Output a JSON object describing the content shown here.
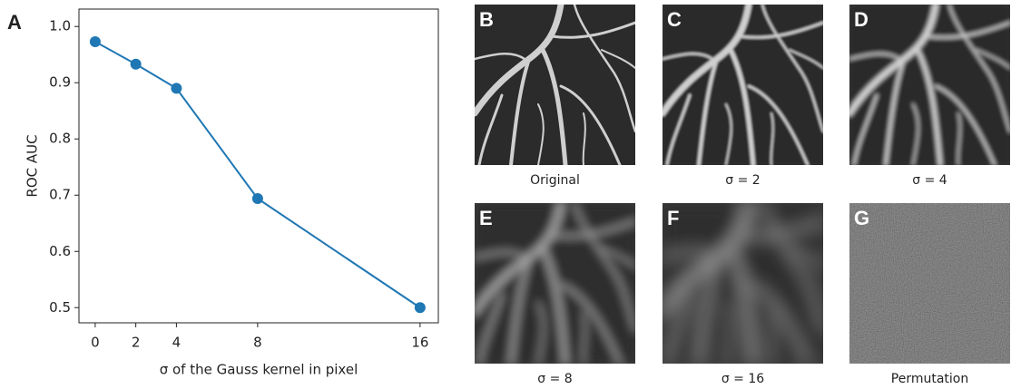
{
  "panel_label": "A",
  "chart_data": {
    "type": "line",
    "x_label": "σ of the Gauss kernel in pixel",
    "y_label": "ROC AUC",
    "x": [
      0,
      2,
      4,
      8,
      16
    ],
    "series": [
      {
        "color": "#1f77b4",
        "values": [
          0.973,
          0.933,
          0.89,
          0.694,
          0.5
        ]
      }
    ],
    "xlim": [
      -0.8,
      16.9
    ],
    "ylim": [
      0.473,
      1.031
    ],
    "xticks": [
      0,
      2,
      4,
      8,
      16
    ],
    "yticks": [
      0.5,
      0.6,
      0.7,
      0.8,
      0.9,
      {
        "value": 1,
        "label": "1.0"
      }
    ],
    "grid": false
  },
  "panels": [
    {
      "label": "B",
      "caption": "Original"
    },
    {
      "label": "C",
      "caption": "σ = 2"
    },
    {
      "label": "D",
      "caption": "σ = 4"
    },
    {
      "label": "E",
      "caption": "σ = 8"
    },
    {
      "label": "F",
      "caption": "σ = 16"
    },
    {
      "label": "G",
      "caption": "Permutation"
    }
  ]
}
